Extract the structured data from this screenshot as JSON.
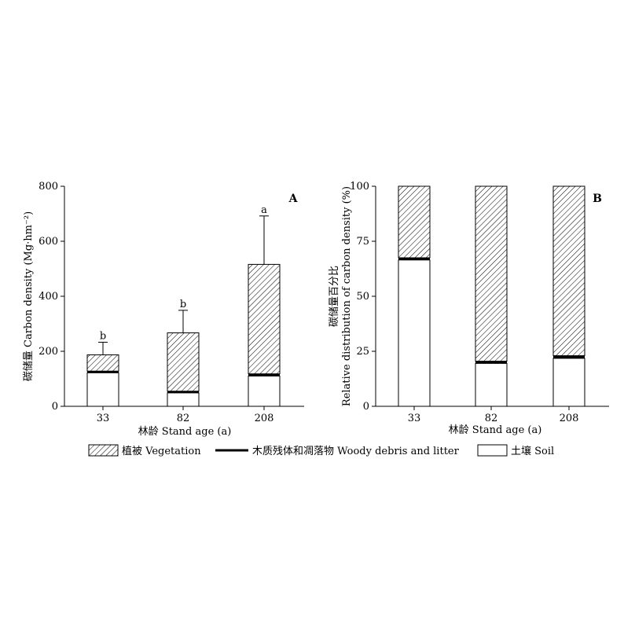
{
  "chart_data": [
    {
      "type": "bar",
      "stacked": true,
      "panel_label": "A",
      "categories": [
        "33",
        "82",
        "208"
      ],
      "series": [
        {
          "name": "土壤 Soil",
          "values": [
            122,
            49,
            110
          ]
        },
        {
          "name": "木质残体和凋落物 Woody debris and litter",
          "values": [
            6,
            6,
            8
          ]
        },
        {
          "name": "植被 Vegetation",
          "values": [
            59,
            212,
            398
          ]
        }
      ],
      "totals": [
        187,
        267,
        516
      ],
      "error_upper": [
        233,
        349,
        692
      ],
      "significance": [
        "b",
        "b",
        "a"
      ],
      "xlabel": "林龄 Stand age (a)",
      "ylabel": "碳储量 Carbon density (Mg·hm⁻²)",
      "ylim": [
        0,
        800
      ],
      "yticks": [
        0,
        200,
        400,
        600,
        800
      ]
    },
    {
      "type": "bar",
      "stacked": true,
      "panel_label": "B",
      "categories": [
        "33",
        "82",
        "208"
      ],
      "series": [
        {
          "name": "土壤 Soil",
          "values": [
            66.5,
            19.5,
            21.8
          ]
        },
        {
          "name": "木质残体和凋落物 Woody debris and litter",
          "values": [
            1.0,
            1.0,
            1.2
          ]
        },
        {
          "name": "植被 Vegetation",
          "values": [
            32.5,
            79.5,
            77.0
          ]
        }
      ],
      "xlabel": "林龄 Stand age (a)",
      "ylabel_line1": "碳储量百分比",
      "ylabel_line2": "Relative distribution of carbon density (%)",
      "ylim": [
        0,
        100
      ],
      "yticks": [
        0,
        25,
        50,
        75,
        100
      ]
    }
  ],
  "legend": {
    "vegetation": "植被 Vegetation",
    "debris": "木质残体和凋落物 Woody debris and litter",
    "soil": "土壤 Soil"
  }
}
